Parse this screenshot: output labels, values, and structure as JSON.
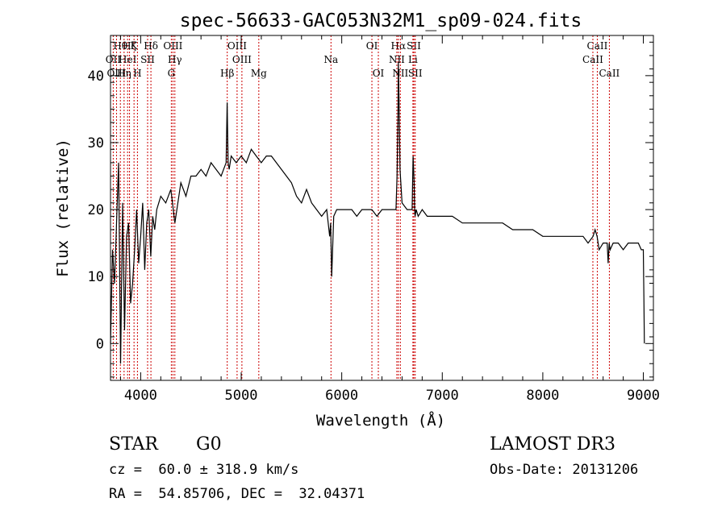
{
  "chart_data": {
    "type": "line",
    "title": "spec-56633-GAC053N32M1_sp09-024.fits",
    "xlabel": "Wavelength (Å)",
    "ylabel": "Flux (relative)",
    "xlim": [
      3700,
      9100
    ],
    "ylim": [
      -5.5,
      46
    ],
    "xticks": [
      4000,
      5000,
      6000,
      7000,
      8000,
      9000
    ],
    "yticks": [
      0,
      10,
      20,
      30,
      40
    ],
    "grid": false,
    "line_color": "#000000",
    "marker_color": "#cc0000",
    "series": [
      {
        "name": "flux",
        "x": [
          3700,
          3720,
          3740,
          3760,
          3780,
          3800,
          3820,
          3840,
          3860,
          3880,
          3900,
          3920,
          3940,
          3960,
          3980,
          4000,
          4020,
          4040,
          4060,
          4080,
          4100,
          4120,
          4140,
          4160,
          4180,
          4200,
          4250,
          4300,
          4340,
          4400,
          4450,
          4500,
          4550,
          4600,
          4650,
          4700,
          4750,
          4800,
          4850,
          4860,
          4870,
          4880,
          4900,
          4950,
          5000,
          5050,
          5100,
          5150,
          5200,
          5250,
          5300,
          5350,
          5400,
          5450,
          5500,
          5550,
          5600,
          5650,
          5700,
          5750,
          5800,
          5850,
          5880,
          5890,
          5900,
          5920,
          5950,
          6000,
          6050,
          6100,
          6150,
          6200,
          6250,
          6300,
          6350,
          6400,
          6450,
          6500,
          6540,
          6550,
          6560,
          6563,
          6570,
          6580,
          6600,
          6650,
          6700,
          6710,
          6720,
          6725,
          6730,
          6740,
          6760,
          6800,
          6850,
          6900,
          6950,
          7000,
          7050,
          7100,
          7200,
          7300,
          7400,
          7500,
          7600,
          7700,
          7800,
          7900,
          8000,
          8100,
          8200,
          8300,
          8400,
          8450,
          8500,
          8520,
          8540,
          8560,
          8600,
          8640,
          8650,
          8660,
          8670,
          8700,
          8750,
          8800,
          8850,
          8900,
          8950,
          8980,
          9000,
          9005,
          9010
        ],
        "y": [
          0,
          14,
          9,
          18,
          27,
          -3,
          21,
          2,
          16,
          18,
          6,
          9,
          14,
          20,
          12,
          16,
          21,
          11,
          18,
          20,
          13,
          19,
          17,
          20,
          21,
          22,
          21,
          23,
          18,
          24,
          22,
          25,
          25,
          26,
          25,
          27,
          26,
          25,
          27,
          36,
          27,
          26,
          28,
          27,
          28,
          27,
          29,
          28,
          27,
          28,
          28,
          27,
          26,
          25,
          24,
          22,
          21,
          23,
          21,
          20,
          19,
          20,
          16,
          18,
          10,
          19,
          20,
          20,
          20,
          20,
          19,
          20,
          20,
          20,
          19,
          20,
          20,
          20,
          20,
          25,
          34,
          42,
          36,
          26,
          21,
          20,
          20,
          28,
          24,
          20,
          19,
          20,
          19,
          20,
          19,
          19,
          19,
          19,
          19,
          19,
          18,
          18,
          18,
          18,
          18,
          17,
          17,
          17,
          16,
          16,
          16,
          16,
          16,
          15,
          16,
          17,
          16,
          14,
          15,
          15,
          12,
          15,
          14,
          15,
          15,
          14,
          15,
          15,
          15,
          14,
          14,
          7,
          0
        ]
      }
    ],
    "line_markers": [
      {
        "label": "Hθ",
        "w": 3798,
        "row": 0
      },
      {
        "label": "OII",
        "w": 3727,
        "row": 1
      },
      {
        "label": "OIII",
        "w": 3760,
        "row": 2
      },
      {
        "label": "Hζ",
        "w": 3889,
        "row": 0
      },
      {
        "label": "HeI",
        "w": 3870,
        "row": 1
      },
      {
        "label": "Hη",
        "w": 3835,
        "row": 2
      },
      {
        "label": "K",
        "w": 3934,
        "row": 0
      },
      {
        "label": "SII",
        "w": 4069,
        "row": 1
      },
      {
        "label": "H",
        "w": 3968,
        "row": 2
      },
      {
        "label": "Hδ",
        "w": 4102,
        "row": 0
      },
      {
        "label": "OIII",
        "w": 4321,
        "row": 0
      },
      {
        "label": "Hγ",
        "w": 4340,
        "row": 1
      },
      {
        "label": "G",
        "w": 4305,
        "row": 2
      },
      {
        "label": "OIII",
        "w": 4959,
        "row": 0
      },
      {
        "label": "OIII",
        "w": 5007,
        "row": 1
      },
      {
        "label": "Hβ",
        "w": 4861,
        "row": 2
      },
      {
        "label": "Mg",
        "w": 5175,
        "row": 2
      },
      {
        "label": "Na",
        "w": 5893,
        "row": 1
      },
      {
        "label": "OI",
        "w": 6300,
        "row": 0
      },
      {
        "label": "OI",
        "w": 6364,
        "row": 2
      },
      {
        "label": "Hα",
        "w": 6563,
        "row": 0
      },
      {
        "label": "NII",
        "w": 6548,
        "row": 1
      },
      {
        "label": "NII",
        "w": 6583,
        "row": 2
      },
      {
        "label": "SII",
        "w": 6717,
        "row": 0
      },
      {
        "label": "Li",
        "w": 6708,
        "row": 1
      },
      {
        "label": "SII",
        "w": 6731,
        "row": 2
      },
      {
        "label": "CaII",
        "w": 8542,
        "row": 0
      },
      {
        "label": "CaII",
        "w": 8498,
        "row": 1
      },
      {
        "label": "CaII",
        "w": 8662,
        "row": 2
      }
    ]
  },
  "info": {
    "class_label": "STAR",
    "subclass": "G0",
    "survey": "LAMOST DR3",
    "redshift": "cz =  60.0 ± 318.9 km/s",
    "obs_date": "Obs-Date: 20131206",
    "coords": "RA =  54.85706, DEC =  32.04371"
  }
}
